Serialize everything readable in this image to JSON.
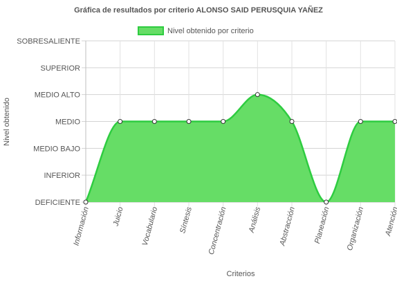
{
  "chart_data": {
    "type": "area",
    "title": "Gráfica de resultados por criterio ALONSO SAID PERUSQUIA YAÑEZ",
    "xlabel": "Criterios",
    "ylabel": "Nivel obtenido",
    "y_levels": [
      "DEFICIENTE",
      "INFERIOR",
      "MEDIO BAJO",
      "MEDIO",
      "MEDIO ALTO",
      "SUPERIOR",
      "SOBRESALIENTE"
    ],
    "categories": [
      "Información",
      "Juicio",
      "Vocabulario",
      "Síntesis",
      "Concentración",
      "Análisis",
      "Abstracción",
      "Planeación",
      "Organización",
      "Atención"
    ],
    "series": [
      {
        "name": "Nivel obtenido por criterio",
        "values": [
          "DEFICIENTE",
          "MEDIO",
          "MEDIO",
          "MEDIO",
          "MEDIO",
          "MEDIO ALTO",
          "MEDIO",
          "DEFICIENTE",
          "MEDIO",
          "MEDIO"
        ],
        "color": "#2ecc40",
        "fill": "#66dd66"
      }
    ],
    "grid": true,
    "legend": "top"
  }
}
